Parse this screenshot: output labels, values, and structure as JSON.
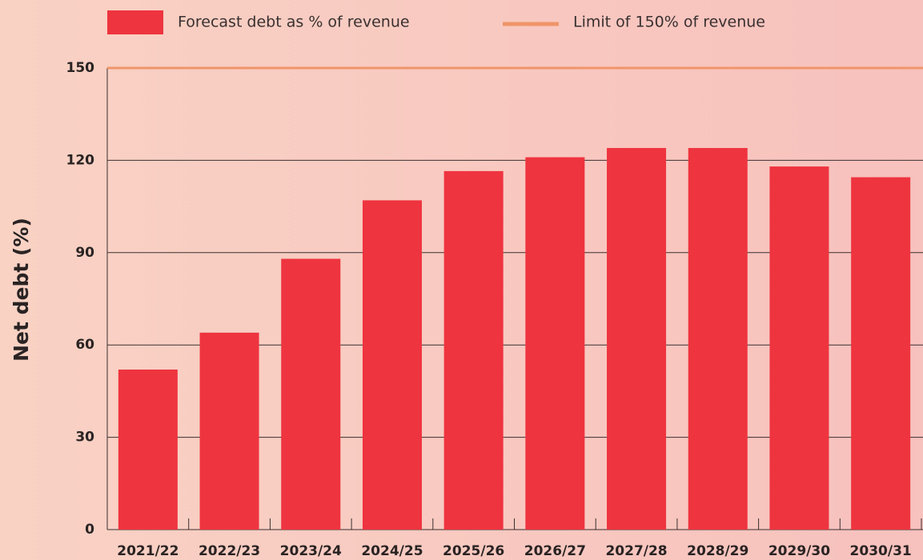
{
  "chart_data": {
    "type": "bar",
    "categories": [
      "2021/22",
      "2022/23",
      "2023/24",
      "2024/25",
      "2025/26",
      "2026/27",
      "2027/28",
      "2028/29",
      "2029/30",
      "2030/31"
    ],
    "series": [
      {
        "name": "Forecast debt as % of revenue",
        "color": "#ee343f",
        "values": [
          52,
          64,
          88,
          107,
          116.5,
          121,
          124,
          124,
          118,
          114.5
        ]
      }
    ],
    "limit": {
      "name": "Limit of 150% of revenue",
      "value": 150,
      "color": "#f0956a"
    },
    "y_label": "Net debt (%)",
    "ylim": [
      0,
      150
    ],
    "yticks": [
      0,
      30,
      60,
      90,
      120,
      150
    ],
    "grid": true
  }
}
